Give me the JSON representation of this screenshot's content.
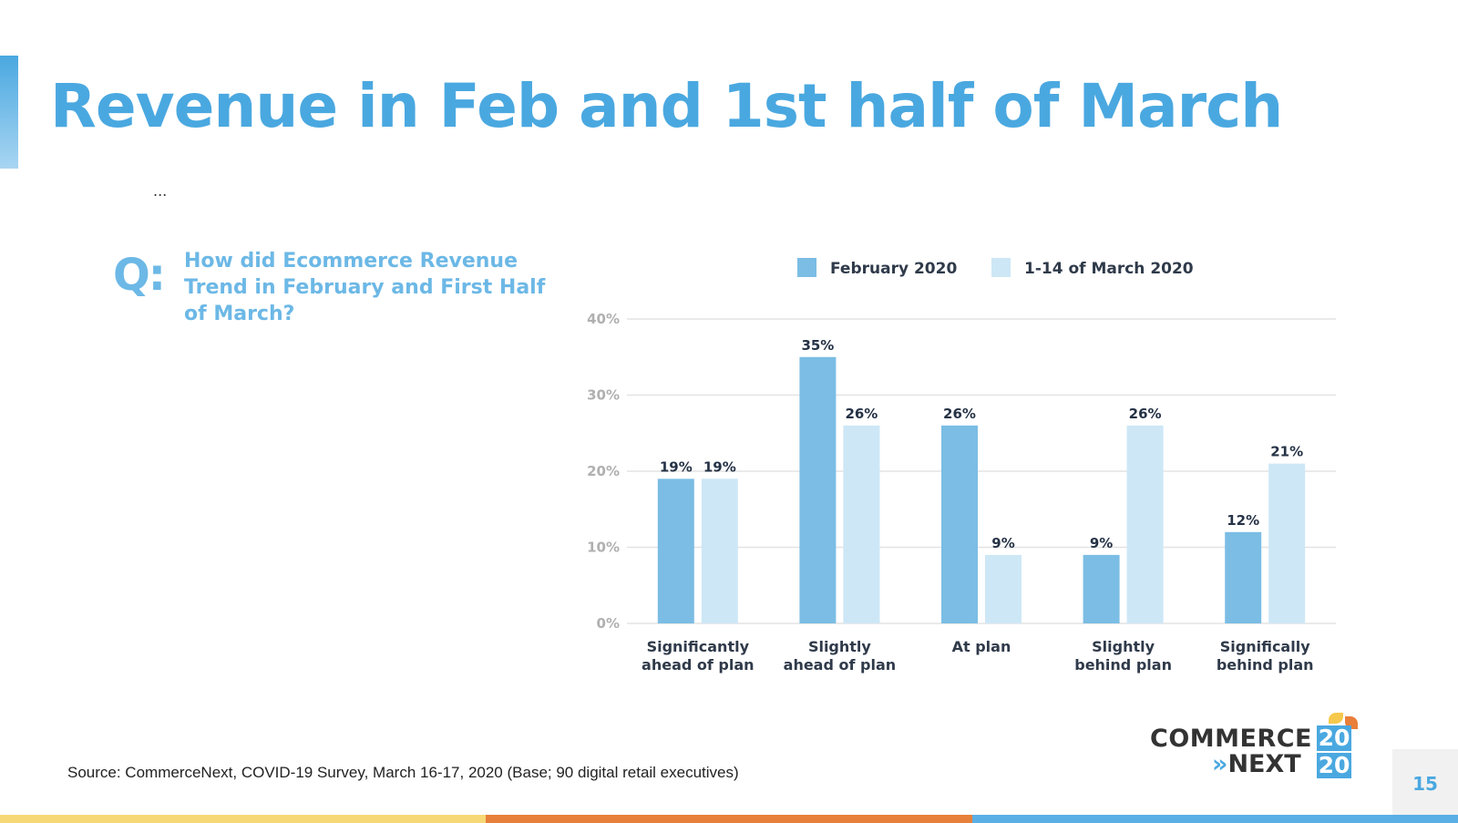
{
  "slide": {
    "title": "Revenue in Feb and 1st half of March",
    "ellipsis": "...",
    "question_icon": "Q:",
    "question": "How did Ecommerce Revenue Trend in February and First Half of March?",
    "source": "Source: CommerceNext, COVID-19 Survey, March 16-17, 2020 (Base; 90 digital retail executives)",
    "page_number": "15",
    "logo": {
      "line1": "COMMERCE",
      "line2_arrows": "»",
      "line2": "NEXT",
      "year_top": "20",
      "year_bottom": "20"
    },
    "colors": {
      "title": "#4aa8e0",
      "accent_bar": "#4aa8e0",
      "footer": [
        "#f6d877",
        "#e7803a",
        "#5aafe5"
      ]
    }
  },
  "chart_data": {
    "type": "bar",
    "categories": [
      [
        "Significantly",
        "ahead of plan"
      ],
      [
        "Slightly",
        "ahead of plan"
      ],
      [
        "At plan"
      ],
      [
        "Slightly",
        "behind plan"
      ],
      [
        "Significally",
        "behind plan"
      ]
    ],
    "series": [
      {
        "name": "February 2020",
        "values": [
          19,
          35,
          26,
          9,
          12
        ],
        "labels": [
          "19%",
          "35%",
          "26%",
          "9%",
          "12%"
        ],
        "color": "#7bbde4"
      },
      {
        "name": "1-14 of March 2020",
        "values": [
          19,
          26,
          9,
          26,
          21
        ],
        "labels": [
          "19%",
          "26%",
          "9%",
          "26%",
          "21%"
        ],
        "color": "#cde7f6"
      }
    ],
    "ylim": [
      0,
      40
    ],
    "yticks": [
      "0%",
      "10%",
      "20%",
      "30%",
      "40%"
    ],
    "grid": true,
    "legend": "top"
  }
}
